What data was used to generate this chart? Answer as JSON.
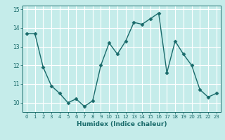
{
  "x": [
    0,
    1,
    2,
    3,
    4,
    5,
    6,
    7,
    8,
    9,
    10,
    11,
    12,
    13,
    14,
    15,
    16,
    17,
    18,
    19,
    20,
    21,
    22,
    23
  ],
  "y": [
    13.7,
    13.7,
    11.9,
    10.9,
    10.5,
    10.0,
    10.2,
    9.8,
    10.1,
    12.0,
    13.2,
    12.6,
    13.3,
    14.3,
    14.2,
    14.5,
    14.8,
    11.6,
    13.3,
    12.6,
    12.0,
    10.7,
    10.3,
    10.5
  ],
  "xlabel": "Humidex (Indice chaleur)",
  "xlim": [
    -0.5,
    23.5
  ],
  "ylim": [
    9.5,
    15.2
  ],
  "bg_color": "#c5ecea",
  "line_color": "#1a6b6b",
  "grid_color": "#ffffff",
  "tick_color": "#1a6b6b",
  "label_color": "#1a6b6b",
  "yticks": [
    10,
    11,
    12,
    13,
    14,
    15
  ],
  "xticks": [
    0,
    1,
    2,
    3,
    4,
    5,
    6,
    7,
    8,
    9,
    10,
    11,
    12,
    13,
    14,
    15,
    16,
    17,
    18,
    19,
    20,
    21,
    22,
    23
  ]
}
